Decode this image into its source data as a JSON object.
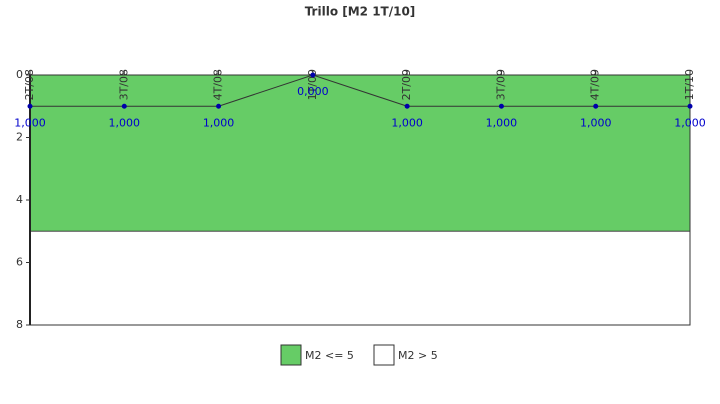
{
  "chart_data": {
    "type": "line",
    "title": "Trillo [M2 1T/10]",
    "categories": [
      "2T/08",
      "3T/08",
      "4T/08",
      "1T/09",
      "2T/09",
      "3T/09",
      "4T/09",
      "1T/10"
    ],
    "series": [
      {
        "values": [
          1,
          1,
          1,
          0,
          1,
          1,
          1,
          1
        ],
        "value_labels": [
          "1,000",
          "1,000",
          "1,000",
          "0,000",
          "1,000",
          "1,000",
          "1,000",
          "1,000"
        ],
        "color": "#333333",
        "marker_color": "#0000aa",
        "label_color": "#0000cc"
      }
    ],
    "bands": [
      {
        "name": "M2 <= 5",
        "color": "#66cc66",
        "from": 0,
        "to": 5
      },
      {
        "name": "M2 > 5",
        "color": "#ffffff",
        "from": 5,
        "to": 8
      }
    ],
    "ylim": [
      0,
      8
    ],
    "yticks": [
      0,
      2,
      4,
      6,
      8
    ],
    "y_inverted": true
  }
}
